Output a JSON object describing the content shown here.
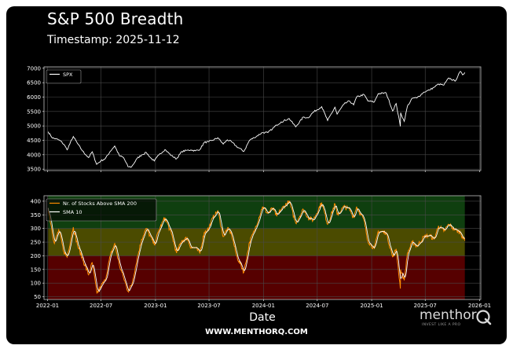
{
  "header": {
    "title": "S&P 500 Breadth",
    "timestamp": "Timestamp: 2025-11-12"
  },
  "footer": {
    "brand": "menthor",
    "tagline": "INVEST LIKE A PRO",
    "website": "WWW.MENTHORQ.COM"
  },
  "colors": {
    "background": "#000000",
    "spx_line": "#ffffff",
    "breadth_line": "#ff8c00",
    "sma_line": "#ffffff",
    "zone_high": "#0f3f0f",
    "zone_mid": "#4b4b00",
    "zone_low": "#560000",
    "grid": "#4a4a4a"
  },
  "chart_data": [
    {
      "type": "line",
      "legend": [
        "SPX"
      ],
      "legend_position": "top-left",
      "grid": true,
      "ylim": [
        3450,
        7050
      ],
      "yticks": [
        3500,
        4000,
        4500,
        5000,
        5500,
        6000,
        6500,
        7000
      ],
      "x_range": [
        "2021-12-20",
        "2026-01-05"
      ],
      "series": [
        {
          "name": "SPX",
          "points": [
            [
              "2022-01-03",
              4796
            ],
            [
              "2022-01-18",
              4577
            ],
            [
              "2022-02-01",
              4546
            ],
            [
              "2022-02-15",
              4472
            ],
            [
              "2022-03-01",
              4306
            ],
            [
              "2022-03-08",
              4170
            ],
            [
              "2022-03-29",
              4632
            ],
            [
              "2022-04-12",
              4397
            ],
            [
              "2022-04-26",
              4175
            ],
            [
              "2022-05-10",
              4001
            ],
            [
              "2022-05-20",
              3901
            ],
            [
              "2022-06-01",
              4101
            ],
            [
              "2022-06-16",
              3666
            ],
            [
              "2022-06-30",
              3785
            ],
            [
              "2022-07-15",
              3863
            ],
            [
              "2022-08-01",
              4118
            ],
            [
              "2022-08-16",
              4305
            ],
            [
              "2022-09-01",
              3966
            ],
            [
              "2022-09-15",
              3901
            ],
            [
              "2022-09-30",
              3586
            ],
            [
              "2022-10-12",
              3577
            ],
            [
              "2022-10-31",
              3872
            ],
            [
              "2022-11-15",
              3992
            ],
            [
              "2022-12-01",
              4076
            ],
            [
              "2022-12-15",
              3895
            ],
            [
              "2022-12-28",
              3783
            ],
            [
              "2023-01-13",
              3999
            ],
            [
              "2023-02-02",
              4179
            ],
            [
              "2023-02-24",
              3970
            ],
            [
              "2023-03-13",
              3855
            ],
            [
              "2023-03-31",
              4109
            ],
            [
              "2023-04-18",
              4154
            ],
            [
              "2023-05-01",
              4168
            ],
            [
              "2023-05-15",
              4136
            ],
            [
              "2023-05-31",
              4180
            ],
            [
              "2023-06-15",
              4426
            ],
            [
              "2023-06-30",
              4450
            ],
            [
              "2023-07-14",
              4505
            ],
            [
              "2023-07-31",
              4589
            ],
            [
              "2023-08-18",
              4370
            ],
            [
              "2023-09-01",
              4516
            ],
            [
              "2023-09-15",
              4450
            ],
            [
              "2023-10-02",
              4288
            ],
            [
              "2023-10-27",
              4117
            ],
            [
              "2023-11-15",
              4502
            ],
            [
              "2023-12-01",
              4594
            ],
            [
              "2023-12-29",
              4770
            ],
            [
              "2024-01-16",
              4766
            ],
            [
              "2024-02-01",
              4906
            ],
            [
              "2024-02-15",
              5030
            ],
            [
              "2024-03-01",
              5137
            ],
            [
              "2024-03-28",
              5254
            ],
            [
              "2024-04-19",
              4967
            ],
            [
              "2024-05-15",
              5308
            ],
            [
              "2024-05-31",
              5277
            ],
            [
              "2024-06-17",
              5473
            ],
            [
              "2024-07-16",
              5667
            ],
            [
              "2024-08-05",
              5186
            ],
            [
              "2024-08-30",
              5648
            ],
            [
              "2024-09-06",
              5408
            ],
            [
              "2024-09-30",
              5762
            ],
            [
              "2024-10-18",
              5864
            ],
            [
              "2024-11-01",
              5729
            ],
            [
              "2024-11-11",
              6001
            ],
            [
              "2024-12-06",
              6090
            ],
            [
              "2024-12-19",
              5867
            ],
            [
              "2025-01-10",
              5827
            ],
            [
              "2025-01-23",
              6119
            ],
            [
              "2025-02-19",
              6144
            ],
            [
              "2025-03-13",
              5521
            ],
            [
              "2025-03-25",
              5776
            ],
            [
              "2025-04-08",
              4982
            ],
            [
              "2025-04-09",
              5456
            ],
            [
              "2025-04-21",
              5158
            ],
            [
              "2025-05-02",
              5686
            ],
            [
              "2025-05-19",
              5963
            ],
            [
              "2025-06-03",
              5970
            ],
            [
              "2025-06-27",
              6173
            ],
            [
              "2025-07-15",
              6244
            ],
            [
              "2025-07-31",
              6339
            ],
            [
              "2025-08-15",
              6450
            ],
            [
              "2025-09-02",
              6415
            ],
            [
              "2025-09-19",
              6664
            ],
            [
              "2025-10-10",
              6552
            ],
            [
              "2025-10-28",
              6891
            ],
            [
              "2025-11-04",
              6771
            ],
            [
              "2025-11-12",
              6850
            ]
          ]
        }
      ]
    },
    {
      "type": "line",
      "xlabel": "Date",
      "legend": [
        "Nr. of Stocks Above SMA 200",
        "SMA 10"
      ],
      "legend_position": "top-left",
      "grid": true,
      "ylim": [
        40,
        420
      ],
      "yticks": [
        50,
        100,
        150,
        200,
        250,
        300,
        350,
        400
      ],
      "x_range": [
        "2021-12-20",
        "2026-01-05"
      ],
      "xticks": [
        "2022-01",
        "2022-07",
        "2023-01",
        "2023-07",
        "2024-01",
        "2024-07",
        "2025-01",
        "2025-07",
        "2026-01"
      ],
      "zones": [
        {
          "from": 300,
          "to": 420,
          "color": "#0f3f0f"
        },
        {
          "from": 200,
          "to": 300,
          "color": "#4b4b00"
        },
        {
          "from": 40,
          "to": 200,
          "color": "#560000"
        }
      ],
      "series": [
        {
          "name": "Nr. of Stocks Above SMA 200",
          "points": [
            [
              "2022-01-03",
              375
            ],
            [
              "2022-01-24",
              245
            ],
            [
              "2022-02-08",
              295
            ],
            [
              "2022-02-25",
              215
            ],
            [
              "2022-03-08",
              195
            ],
            [
              "2022-03-29",
              305
            ],
            [
              "2022-04-12",
              240
            ],
            [
              "2022-05-02",
              180
            ],
            [
              "2022-05-20",
              130
            ],
            [
              "2022-06-01",
              175
            ],
            [
              "2022-06-17",
              62
            ],
            [
              "2022-07-01",
              90
            ],
            [
              "2022-07-15",
              110
            ],
            [
              "2022-08-01",
              200
            ],
            [
              "2022-08-16",
              245
            ],
            [
              "2022-09-01",
              165
            ],
            [
              "2022-09-15",
              120
            ],
            [
              "2022-09-30",
              70
            ],
            [
              "2022-10-13",
              95
            ],
            [
              "2022-10-31",
              190
            ],
            [
              "2022-11-15",
              260
            ],
            [
              "2022-12-01",
              300
            ],
            [
              "2022-12-15",
              270
            ],
            [
              "2022-12-28",
              240
            ],
            [
              "2023-01-13",
              295
            ],
            [
              "2023-02-02",
              340
            ],
            [
              "2023-02-24",
              280
            ],
            [
              "2023-03-13",
              210
            ],
            [
              "2023-03-31",
              255
            ],
            [
              "2023-04-18",
              265
            ],
            [
              "2023-05-01",
              230
            ],
            [
              "2023-05-15",
              230
            ],
            [
              "2023-05-31",
              210
            ],
            [
              "2023-06-15",
              285
            ],
            [
              "2023-06-30",
              300
            ],
            [
              "2023-07-14",
              340
            ],
            [
              "2023-07-31",
              365
            ],
            [
              "2023-08-18",
              270
            ],
            [
              "2023-09-01",
              300
            ],
            [
              "2023-09-15",
              280
            ],
            [
              "2023-10-02",
              200
            ],
            [
              "2023-10-27",
              140
            ],
            [
              "2023-11-15",
              250
            ],
            [
              "2023-12-01",
              290
            ],
            [
              "2023-12-29",
              380
            ],
            [
              "2024-01-16",
              355
            ],
            [
              "2024-02-01",
              375
            ],
            [
              "2024-02-15",
              345
            ],
            [
              "2024-03-01",
              370
            ],
            [
              "2024-03-28",
              400
            ],
            [
              "2024-04-19",
              320
            ],
            [
              "2024-05-15",
              370
            ],
            [
              "2024-05-31",
              340
            ],
            [
              "2024-06-17",
              330
            ],
            [
              "2024-07-16",
              395
            ],
            [
              "2024-08-05",
              315
            ],
            [
              "2024-08-30",
              390
            ],
            [
              "2024-09-06",
              350
            ],
            [
              "2024-09-30",
              380
            ],
            [
              "2024-10-18",
              370
            ],
            [
              "2024-11-01",
              340
            ],
            [
              "2024-11-11",
              380
            ],
            [
              "2024-12-06",
              330
            ],
            [
              "2024-12-19",
              255
            ],
            [
              "2025-01-10",
              225
            ],
            [
              "2025-01-23",
              290
            ],
            [
              "2025-02-19",
              285
            ],
            [
              "2025-03-13",
              195
            ],
            [
              "2025-03-25",
              225
            ],
            [
              "2025-04-08",
              80
            ],
            [
              "2025-04-09",
              150
            ],
            [
              "2025-04-21",
              110
            ],
            [
              "2025-05-02",
              210
            ],
            [
              "2025-05-19",
              250
            ],
            [
              "2025-06-03",
              235
            ],
            [
              "2025-06-27",
              270
            ],
            [
              "2025-07-15",
              275
            ],
            [
              "2025-07-31",
              260
            ],
            [
              "2025-08-15",
              310
            ],
            [
              "2025-09-02",
              290
            ],
            [
              "2025-09-19",
              315
            ],
            [
              "2025-10-10",
              295
            ],
            [
              "2025-10-28",
              285
            ],
            [
              "2025-11-04",
              270
            ],
            [
              "2025-11-12",
              255
            ]
          ]
        }
      ]
    }
  ]
}
